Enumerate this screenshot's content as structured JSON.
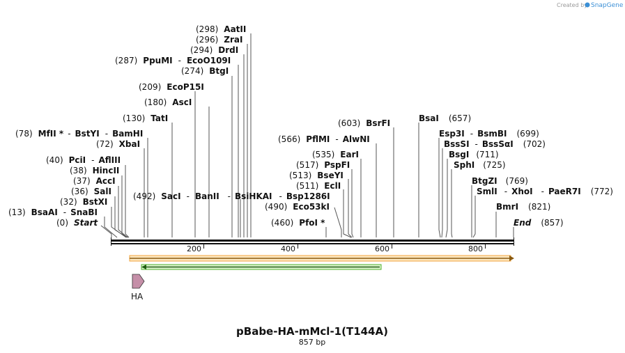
{
  "credit": {
    "prefix": "Created by",
    "brand": "SnapGene"
  },
  "map": {
    "title": "pBabe-HA-mMcl-1(T144A)",
    "length_label": "857 bp",
    "length_bp": 857,
    "ticks": [
      "200",
      "400",
      "600",
      "800"
    ],
    "feature_label": "HA"
  },
  "colors": {
    "backbone": "#111111",
    "feature_orange": "#f2a540",
    "feature_green": "#4caf2a",
    "ha_arrow": "#c58fa8"
  },
  "labels": [
    {
      "pos": "(298)",
      "name": "AatII"
    },
    {
      "pos": "(296)",
      "name": "ZraI"
    },
    {
      "pos": "(294)",
      "name": "DrdI"
    },
    {
      "pos": "(287)",
      "name": "PpuMI",
      "sep": "-",
      "name2": "EcoO109I"
    },
    {
      "pos": "(274)",
      "name": "BtgI"
    },
    {
      "pos": "(209)",
      "name": "EcoP15I"
    },
    {
      "pos": "(180)",
      "name": "AscI"
    },
    {
      "pos": "(130)",
      "name": "TatI"
    },
    {
      "pos": "(78)",
      "name": "MfII *",
      "sep": "-",
      "name2": "BstYI",
      "sep2": "-",
      "name3": "BamHI"
    },
    {
      "pos": "(72)",
      "name": "XbaI"
    },
    {
      "pos": "(40)",
      "name": "PciI",
      "sep": "-",
      "name2": "AflIII"
    },
    {
      "pos": "(38)",
      "name": "HincII"
    },
    {
      "pos": "(37)",
      "name": "AccI"
    },
    {
      "pos": "(36)",
      "name": "SalI"
    },
    {
      "pos": "(32)",
      "name": "BstXI"
    },
    {
      "pos": "(13)",
      "name": "BsaAI",
      "sep": "-",
      "name2": "SnaBI"
    },
    {
      "pos": "(0)",
      "name": "Start"
    },
    {
      "pos": "(492)",
      "name": "SacI",
      "sep": "-",
      "name2": "BanII",
      "sep2": "-",
      "name3": "BsiHKAI",
      "sep3": "-",
      "name4": "Bsp1286I"
    },
    {
      "pos": "(490)",
      "name": "Eco53kI"
    },
    {
      "pos": "(460)",
      "name": "PfoI *"
    },
    {
      "pos": "(511)",
      "name": "EclI"
    },
    {
      "pos": "(513)",
      "name": "BseYI"
    },
    {
      "pos": "(517)",
      "name": "PspFI"
    },
    {
      "pos": "(535)",
      "name": "EarI"
    },
    {
      "pos": "(566)",
      "name": "PflMI",
      "sep": "-",
      "name2": "AlwNI"
    },
    {
      "pos": "(603)",
      "name": "BsrFI"
    },
    {
      "name": "BsaI",
      "pos": "(657)"
    },
    {
      "name": "Esp3I",
      "sep": "-",
      "name2": "BsmBI",
      "pos": "(699)"
    },
    {
      "name": "BssSI",
      "sep": "-",
      "name2": "BssSαI",
      "pos": "(702)"
    },
    {
      "name": "BsgI",
      "pos": "(711)"
    },
    {
      "name": "SphI",
      "pos": "(725)"
    },
    {
      "name": "BtgZI",
      "pos": "(769)"
    },
    {
      "name": "SmlI",
      "sep": "-",
      "name2": "XhoI",
      "sep2": "-",
      "name3": "PaeR7I",
      "pos": "(772)"
    },
    {
      "name": "BmrI",
      "pos": "(821)"
    },
    {
      "name": "End",
      "pos": "(857)"
    }
  ]
}
